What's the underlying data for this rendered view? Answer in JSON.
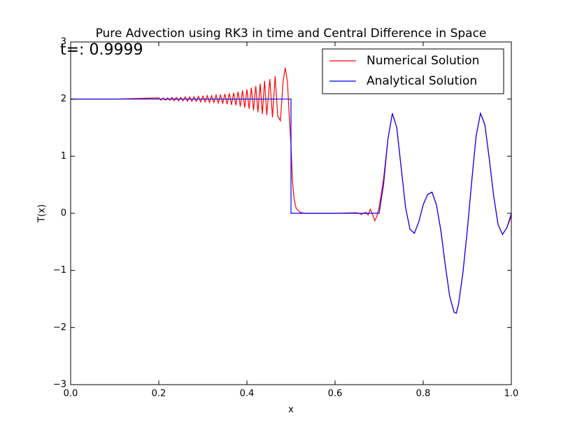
{
  "chart_data": {
    "type": "line",
    "title": "Pure Advection using RK3 in time and Central Difference in Space",
    "annotation": "t=: 0.9999",
    "x_label": "x",
    "y_label": "T(x)",
    "xlim": [
      0,
      1
    ],
    "ylim": [
      -3,
      3
    ],
    "xticks": [
      {
        "value": 0,
        "label": "0.0"
      },
      {
        "value": 0.2,
        "label": "0.2"
      },
      {
        "value": 0.4,
        "label": "0.4"
      },
      {
        "value": 0.6,
        "label": "0.6"
      },
      {
        "value": 0.8,
        "label": "0.8"
      },
      {
        "value": 1,
        "label": "1.0"
      }
    ],
    "yticks": [
      {
        "value": -3,
        "label": "−3"
      },
      {
        "value": -2,
        "label": "−2"
      },
      {
        "value": -1,
        "label": "−1"
      },
      0,
      1,
      2,
      3
    ],
    "legend": "upper right",
    "series": [
      {
        "name": "Numerical Solution",
        "color": "#ff0000",
        "x": [
          0,
          0.1,
          0.2,
          0.205,
          0.21,
          0.215,
          0.22,
          0.225,
          0.23,
          0.235,
          0.24,
          0.245,
          0.25,
          0.255,
          0.26,
          0.265,
          0.27,
          0.275,
          0.28,
          0.285,
          0.29,
          0.295,
          0.3,
          0.305,
          0.31,
          0.315,
          0.32,
          0.325,
          0.33,
          0.335,
          0.34,
          0.345,
          0.35,
          0.355,
          0.36,
          0.365,
          0.37,
          0.375,
          0.38,
          0.385,
          0.39,
          0.395,
          0.4,
          0.405,
          0.41,
          0.415,
          0.42,
          0.425,
          0.43,
          0.435,
          0.44,
          0.445,
          0.452,
          0.458,
          0.464,
          0.47,
          0.476,
          0.482,
          0.487,
          0.492,
          0.496,
          0.5,
          0.503,
          0.507,
          0.512,
          0.52,
          0.53,
          0.6,
          0.65,
          0.66,
          0.67,
          0.675,
          0.68,
          0.685,
          0.69,
          0.695,
          0.7,
          0.71,
          0.72,
          0.73,
          0.74,
          0.75,
          0.76,
          0.77,
          0.78,
          0.79,
          0.8,
          0.81,
          0.82,
          0.83,
          0.84,
          0.85,
          0.86,
          0.87,
          0.875,
          0.88,
          0.89,
          0.9,
          0.91,
          0.92,
          0.93,
          0.94,
          0.95,
          0.96,
          0.97,
          0.98,
          0.99,
          1
        ],
        "values": [
          2,
          2,
          2.02,
          1.98,
          2.02,
          1.98,
          2.02,
          1.98,
          2.03,
          1.97,
          2.03,
          1.97,
          2.03,
          1.97,
          2.04,
          1.96,
          2.04,
          1.96,
          2.04,
          1.96,
          2.05,
          1.95,
          2.05,
          1.95,
          2.06,
          1.94,
          2.06,
          1.94,
          2.07,
          1.93,
          2.08,
          1.92,
          2.09,
          1.91,
          2.1,
          1.9,
          2.11,
          1.89,
          2.13,
          1.87,
          2.15,
          1.85,
          2.17,
          1.83,
          2.2,
          1.8,
          2.23,
          1.77,
          2.27,
          1.74,
          2.32,
          1.72,
          2.35,
          1.68,
          2.4,
          1.7,
          1.62,
          2.3,
          2.55,
          2.3,
          1.7,
          1.2,
          0.6,
          0.25,
          0.08,
          0.02,
          0,
          0,
          0.01,
          -0.02,
          0.02,
          -0.03,
          0.07,
          -0.02,
          -0.13,
          -0.05,
          0.1,
          0.6,
          1.3,
          1.75,
          1.5,
          0.8,
          0.1,
          -0.28,
          -0.35,
          -0.15,
          0.15,
          0.33,
          0.37,
          0.15,
          -0.3,
          -0.9,
          -1.45,
          -1.73,
          -1.75,
          -1.6,
          -1.05,
          -0.3,
          0.55,
          1.35,
          1.75,
          1.55,
          0.95,
          0.3,
          -0.2,
          -0.37,
          -0.25,
          -0.05
        ]
      },
      {
        "name": "Analytical Solution",
        "color": "#0000ff",
        "x": [
          0,
          0.5,
          0.5,
          0.7,
          0.71,
          0.72,
          0.73,
          0.74,
          0.75,
          0.76,
          0.77,
          0.78,
          0.79,
          0.8,
          0.81,
          0.82,
          0.83,
          0.84,
          0.85,
          0.86,
          0.87,
          0.875,
          0.88,
          0.89,
          0.9,
          0.91,
          0.92,
          0.93,
          0.94,
          0.95,
          0.96,
          0.97,
          0.98,
          0.99,
          1
        ],
        "values": [
          2,
          2,
          0,
          0,
          0.5,
          1.3,
          1.75,
          1.5,
          0.8,
          0.1,
          -0.28,
          -0.35,
          -0.15,
          0.15,
          0.33,
          0.37,
          0.15,
          -0.3,
          -0.9,
          -1.45,
          -1.73,
          -1.75,
          -1.6,
          -1.05,
          -0.3,
          0.55,
          1.35,
          1.75,
          1.55,
          0.95,
          0.3,
          -0.2,
          -0.37,
          -0.25,
          0
        ]
      }
    ]
  }
}
